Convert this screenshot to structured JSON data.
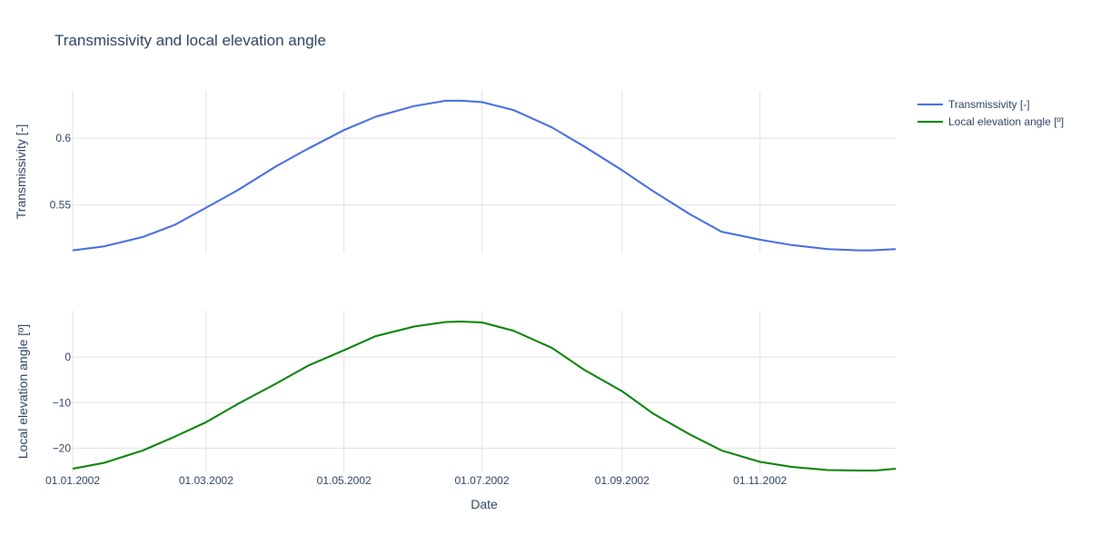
{
  "chart_data": {
    "type": "line",
    "title": "Transmissivity and local elevation angle",
    "xlabel": "Date",
    "x_range": [
      "2002-01-01",
      "2002-12-31"
    ],
    "x_ticks": [
      "01.01.2002",
      "01.03.2002",
      "01.05.2002",
      "01.07.2002",
      "01.09.2002",
      "01.11.2002"
    ],
    "x_tick_dates": [
      "2002-01-01",
      "2002-03-01",
      "2002-05-01",
      "2002-07-01",
      "2002-09-01",
      "2002-11-01"
    ],
    "grid": true,
    "legend_position": "top-right",
    "subplots": [
      {
        "ylabel": "Transmissivity [-]",
        "ylim": [
          0.5144,
          0.6354
        ],
        "y_ticks": [
          0.55,
          0.6
        ],
        "y_tick_labels": [
          "0.55",
          "0.6"
        ],
        "series": [
          {
            "name": "Transmissivity [-]",
            "color": "#4169e1",
            "x": [
              "2002-01-01",
              "2002-01-15",
              "2002-02-01",
              "2002-02-15",
              "2002-03-01",
              "2002-03-15",
              "2002-04-01",
              "2002-04-15",
              "2002-05-01",
              "2002-05-15",
              "2002-06-01",
              "2002-06-15",
              "2002-06-22",
              "2002-07-01",
              "2002-07-15",
              "2002-08-01",
              "2002-08-15",
              "2002-09-01",
              "2002-09-15",
              "2002-10-01",
              "2002-10-15",
              "2002-11-01",
              "2002-11-15",
              "2002-12-01",
              "2002-12-15",
              "2002-12-20",
              "2002-12-31"
            ],
            "y": [
              0.516,
              0.519,
              0.526,
              0.535,
              0.548,
              0.561,
              0.579,
              0.592,
              0.606,
              0.616,
              0.624,
              0.628,
              0.628,
              0.627,
              0.621,
              0.608,
              0.594,
              0.576,
              0.56,
              0.543,
              0.53,
              0.524,
              0.52,
              0.517,
              0.516,
              0.516,
              0.517
            ]
          }
        ]
      },
      {
        "ylabel": "Local elevation angle [º]",
        "ylim": [
          -25.3,
          10.2
        ],
        "y_ticks": [
          -20,
          -10,
          0
        ],
        "y_tick_labels": [
          "−20",
          "−10",
          "0"
        ],
        "series": [
          {
            "name": "Local elevation angle [º]",
            "color": "#008000",
            "x": [
              "2002-01-01",
              "2002-01-15",
              "2002-02-01",
              "2002-02-15",
              "2002-03-01",
              "2002-03-15",
              "2002-04-01",
              "2002-04-15",
              "2002-05-01",
              "2002-05-15",
              "2002-06-01",
              "2002-06-15",
              "2002-06-22",
              "2002-07-01",
              "2002-07-15",
              "2002-08-01",
              "2002-08-15",
              "2002-09-01",
              "2002-09-15",
              "2002-10-01",
              "2002-10-15",
              "2002-11-01",
              "2002-11-15",
              "2002-12-01",
              "2002-12-15",
              "2002-12-22",
              "2002-12-31"
            ],
            "y": [
              -24.5,
              -23.2,
              -20.5,
              -17.5,
              -14.3,
              -10.3,
              -5.8,
              -1.9,
              1.5,
              4.6,
              6.7,
              7.7,
              7.8,
              7.6,
              5.8,
              2.0,
              -2.7,
              -7.5,
              -12.5,
              -17.0,
              -20.5,
              -23.0,
              -24.1,
              -24.8,
              -24.9,
              -24.9,
              -24.5
            ]
          }
        ]
      }
    ]
  }
}
